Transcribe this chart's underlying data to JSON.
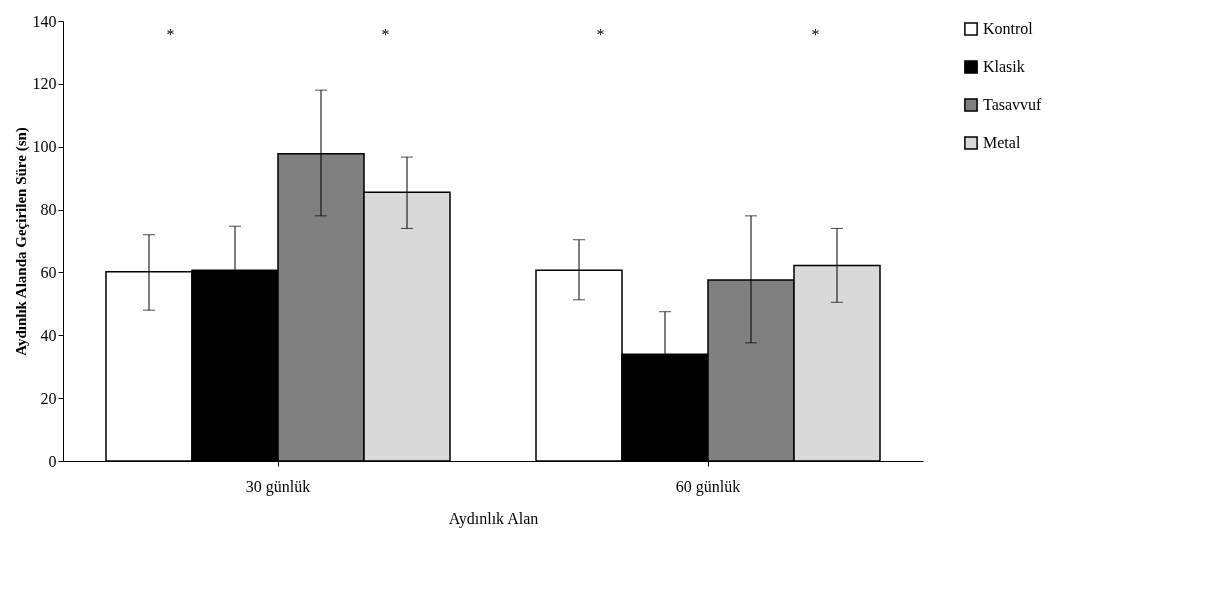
{
  "chart_data": {
    "type": "bar",
    "ylabel": "Aydınlık Alanda Geçirilen Süre (sn)",
    "xlabel": "Aydınlık Alan",
    "categories": [
      "30 günlük",
      "60 günlük"
    ],
    "series": [
      {
        "name": "Kontrol",
        "color": "#ffffff",
        "values": [
          60.2,
          60.7
        ],
        "errors": [
          [
            48,
            72
          ],
          [
            51.3,
            70.4
          ]
        ]
      },
      {
        "name": "Klasik",
        "color": "#000000",
        "values": [
          60.7,
          34
        ],
        "errors": [
          14,
          13.5
        ]
      },
      {
        "name": "Tasavvuf",
        "color": "#808080",
        "values": [
          97.8,
          57.6
        ],
        "errors": [
          [
            78,
            118
          ],
          [
            37.6,
            78
          ]
        ]
      },
      {
        "name": "Metal",
        "color": "#d9d9d9",
        "values": [
          85.5,
          62.2
        ],
        "errors": [
          [
            74,
            96.7
          ],
          [
            50.5,
            74
          ]
        ]
      }
    ],
    "ylim": [
      0,
      140
    ],
    "yticks": [
      0,
      20,
      40,
      60,
      80,
      100,
      120,
      140
    ],
    "grid": false,
    "legend": "right",
    "annotations": [
      "*",
      "*",
      "*",
      "*"
    ]
  }
}
